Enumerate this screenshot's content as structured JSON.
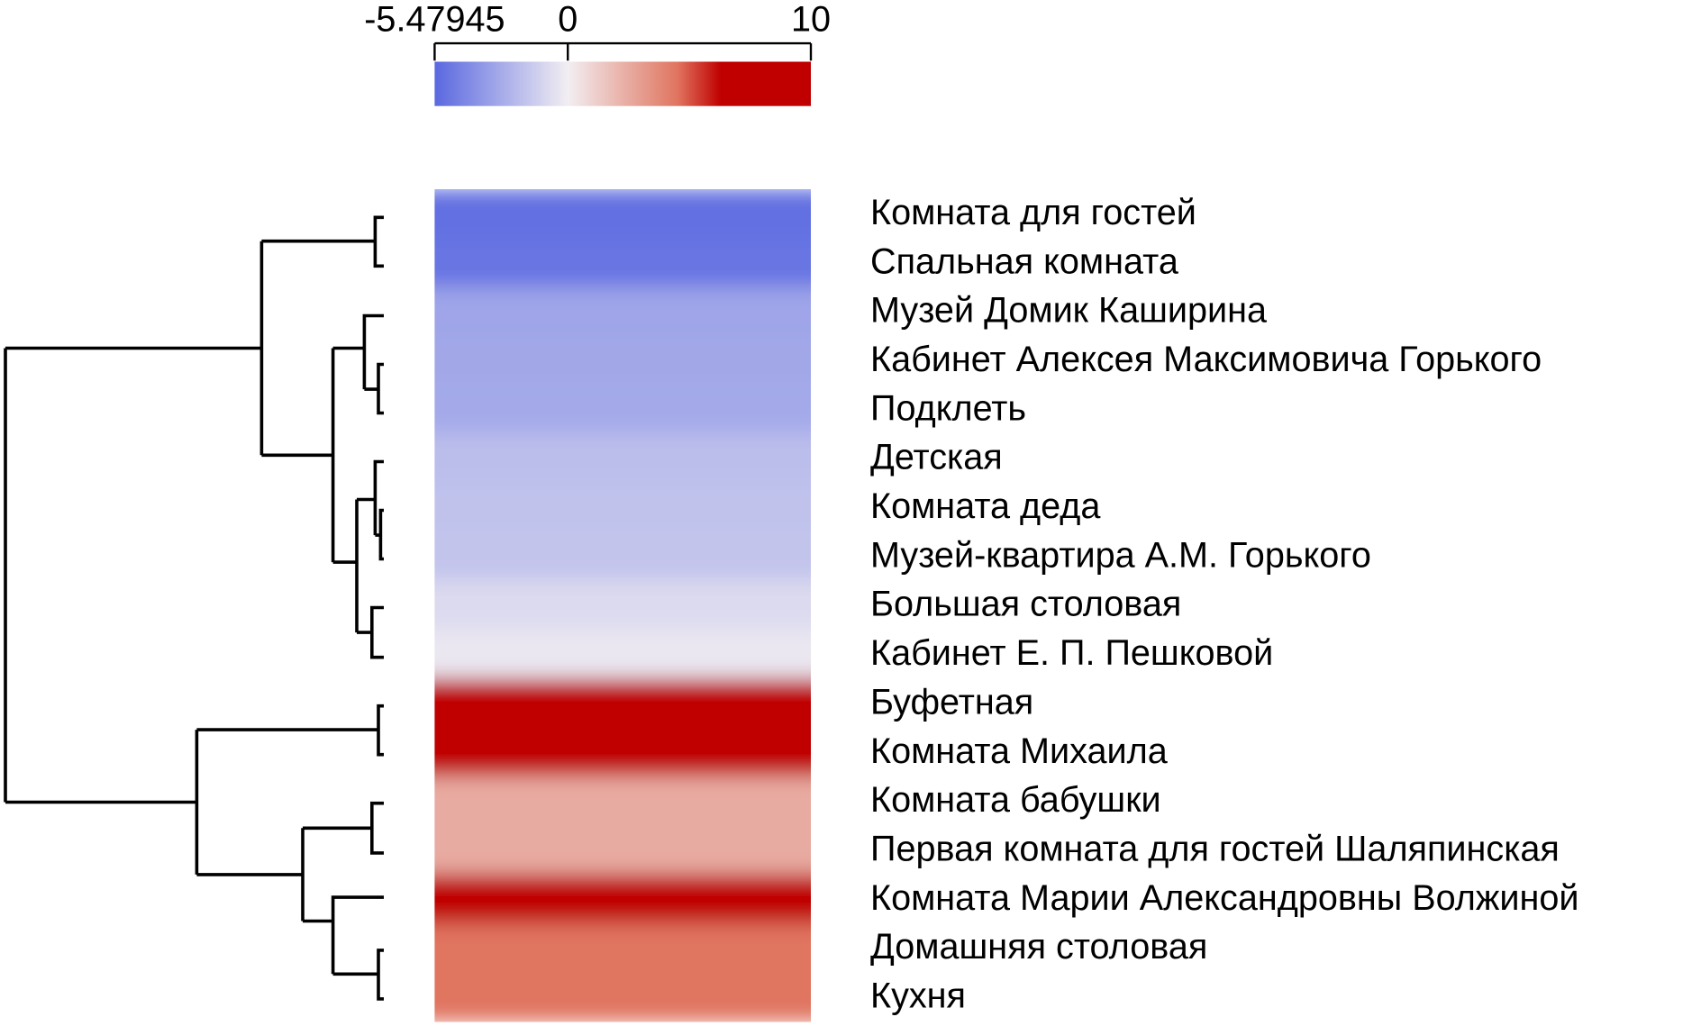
{
  "chart_data": {
    "type": "heatmap",
    "categories": [
      "Комната для гостей",
      "Спальная комната",
      "Музей Домик Каширина",
      "Кабинет Алексея Максимовича Горького",
      "Подклеть",
      "Детская",
      "Комната деда",
      "Музей-квартира А.М. Горького",
      "Большая столовая",
      "Кабинет Е. П. Пешковой",
      "Буфетная",
      "Комната Михаила",
      "Комната бабушки",
      "Первая комната для гостей Шаляпинская",
      "Комната Марии Александровны Волжиной",
      "Домашняя столовая",
      "Кухня"
    ],
    "values": [
      -5.2,
      -5.0,
      -3.0,
      -2.9,
      -2.8,
      -2.0,
      -1.8,
      -1.7,
      -0.8,
      -0.3,
      10,
      9.5,
      2.5,
      2.5,
      8,
      4.5,
      4.5
    ],
    "colorbar": {
      "xlim": [
        -5.47945,
        10
      ],
      "xticks": [
        {
          "value": -5.47945,
          "label": "-5.47945"
        },
        0,
        10
      ]
    },
    "colorscale": [
      [
        -5.47945,
        "#5a68e0"
      ],
      [
        0,
        "#f2eef2"
      ],
      [
        4.5,
        "#e07560"
      ],
      [
        6.3,
        "#c00000"
      ],
      [
        10,
        "#c00000"
      ]
    ]
  }
}
